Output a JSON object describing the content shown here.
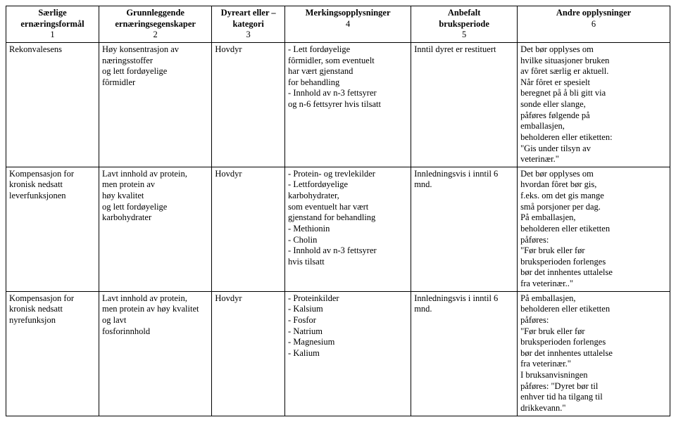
{
  "table": {
    "headers": [
      {
        "title": "Særlige\nernæringsformål",
        "num": "1"
      },
      {
        "title": "Grunnleggende\nernæringsegenskaper",
        "num": "2"
      },
      {
        "title": "Dyreart eller –\nkategori",
        "num": "3"
      },
      {
        "title": "Merkingsopplysninger",
        "num": "4"
      },
      {
        "title": "Anbefalt\nbruksperiode",
        "num": "5"
      },
      {
        "title": "Andre opplysninger",
        "num": "6"
      }
    ],
    "rows": [
      {
        "c1": "Rekonvalesens",
        "c2": "Høy konsentrasjon av\nnæringsstoffer\nog lett fordøyelige\nfôrmidler",
        "c3": "Hovdyr",
        "c4": "- Lett fordøyelige\nfôrmidler, som eventuelt\nhar vært gjenstand\nfor behandling\n- Innhold av n-3 fettsyrer\nog n-6 fettsyrer hvis tilsatt",
        "c5": "Inntil dyret er restituert",
        "c6": "Det bør opplyses om\nhvilke situasjoner bruken\nav fôret særlig er aktuell.\nNår fôret er spesielt\nberegnet på å bli gitt via\nsonde eller slange,\npåføres følgende på\nemballasjen,\nbeholderen eller etiketten:\n\"Gis under tilsyn av\nveterinær.\""
      },
      {
        "c1": "Kompensasjon for\nkronisk nedsatt\nleverfunksjonen",
        "c2": "Lavt innhold av protein,\nmen protein av\nhøy kvalitet\nog lett fordøyelige\nkarbohydrater",
        "c3": "Hovdyr",
        "c4": "- Protein- og trevlekilder\n- Lettfordøyelige\nkarbohydrater,\nsom eventuelt har vært\ngjenstand for behandling\n- Methionin\n- Cholin\n- Innhold av n-3 fettsyrer\nhvis tilsatt",
        "c5": "Innledningsvis i inntil 6\nmnd.",
        "c6": "Det bør opplyses om\nhvordan fôret bør gis,\nf.eks. om det gis mange\nsmå porsjoner per dag.\nPå emballasjen,\nbeholderen eller etiketten\npåføres:\n\"Før bruk eller før\nbruksperioden forlenges\nbør det innhentes uttalelse\nfra veterinær..\""
      },
      {
        "c1": "Kompensasjon for\nkronisk nedsatt\nnyrefunksjon",
        "c2": "Lavt innhold av protein,\nmen protein av høy kvalitet\nog lavt\nfosforinnhold",
        "c3": "Hovdyr",
        "c4": "- Proteinkilder\n- Kalsium\n- Fosfor\n- Natrium\n- Magnesium\n- Kalium",
        "c5": "Innledningsvis i inntil 6\nmnd.",
        "c6": "På emballasjen,\nbeholderen eller etiketten\npåføres:\n\"Før bruk eller før\nbruksperioden forlenges\nbør det innhentes uttalelse\nfra veterinær.\"\nI bruksanvisningen\npåføres: \"Dyret bør til\nenhver tid ha tilgang til\ndrikkevann.\""
      }
    ]
  }
}
